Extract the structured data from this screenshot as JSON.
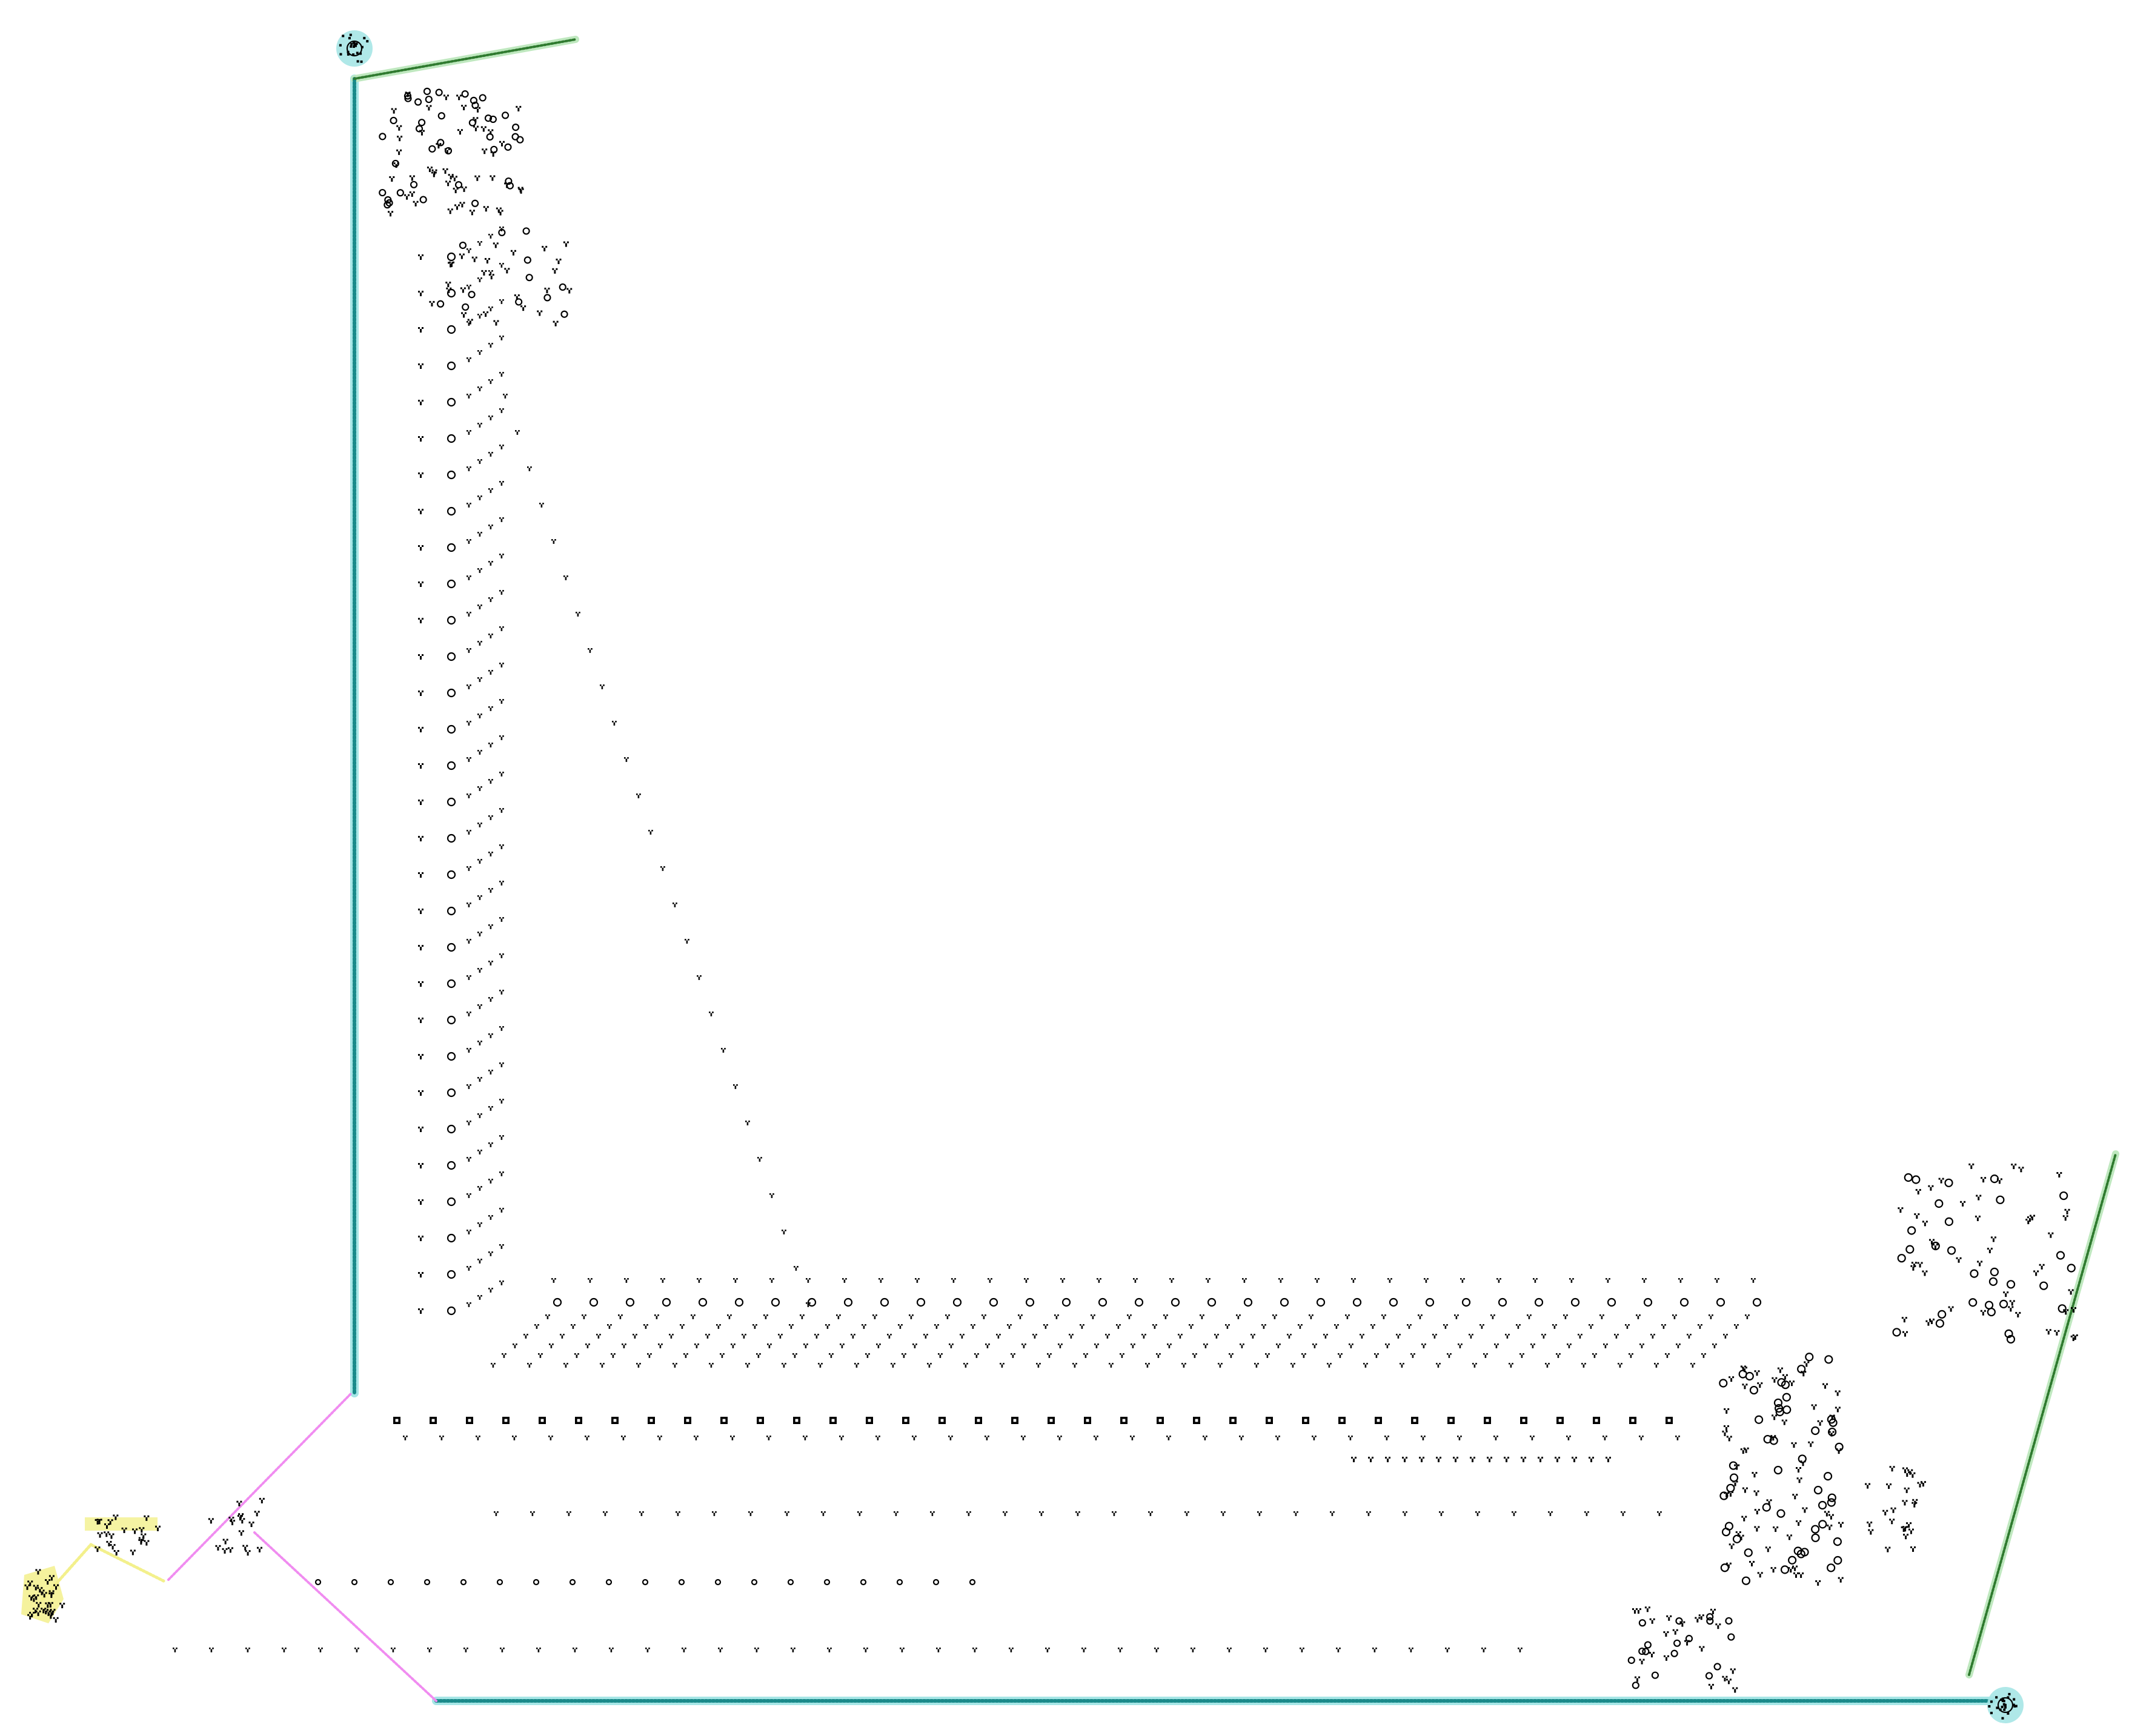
{
  "colors": {
    "background": "#ffffff",
    "cells": "#000000",
    "teal_track": "#1a8a8a",
    "teal_glow": "#a6e6e6",
    "green_track": "#2f7a2f",
    "green_glow": "#bfe8bf",
    "pink_track": "#f08cf0",
    "yellow_track": "#f3f08c"
  },
  "icons": {
    "top_reflector": "reflector-cluster-icon",
    "bottom_right_reflector": "reflector-cluster-icon",
    "left_seed_blob": "seed-blob-icon",
    "cell": "cell-dot-icon"
  }
}
